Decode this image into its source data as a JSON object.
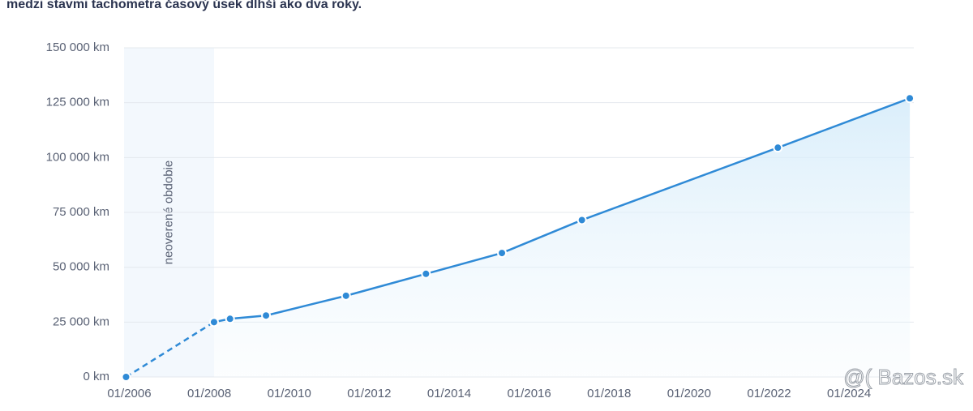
{
  "header": "medzi stavmi tachometra časový úsek dlhší ako dva roky.",
  "chart_data": {
    "type": "line",
    "annotation": "neoverené obdobie",
    "x": [
      2006.0,
      2008.2,
      2008.6,
      2009.5,
      2011.5,
      2013.5,
      2015.4,
      2017.4,
      2022.3,
      2025.6
    ],
    "values": [
      0,
      25000,
      26500,
      28000,
      37000,
      47000,
      56500,
      71500,
      104500,
      127000
    ],
    "color": "#2f8ad6",
    "xlim": [
      2005.95,
      2025.7
    ],
    "xticks": [
      {
        "value": 2006,
        "label": "01/2006"
      },
      {
        "value": 2008,
        "label": "01/2008"
      },
      {
        "value": 2010,
        "label": "01/2010"
      },
      {
        "value": 2012,
        "label": "01/2012"
      },
      {
        "value": 2014,
        "label": "01/2014"
      },
      {
        "value": 2016,
        "label": "01/2016"
      },
      {
        "value": 2018,
        "label": "01/2018"
      },
      {
        "value": 2020,
        "label": "01/2020"
      },
      {
        "value": 2022,
        "label": "01/2022"
      },
      {
        "value": 2024,
        "label": "01/2024"
      }
    ],
    "ylim": [
      0,
      150000
    ],
    "yticks": [
      {
        "value": 0,
        "label": "0 km"
      },
      {
        "value": 25000,
        "label": "25 000 km"
      },
      {
        "value": 50000,
        "label": "50 000 km"
      },
      {
        "value": 75000,
        "label": "75 000 km"
      },
      {
        "value": 100000,
        "label": "100 000 km"
      },
      {
        "value": 125000,
        "label": "125 000 km"
      },
      {
        "value": 150000,
        "label": "150 000 km"
      }
    ],
    "grid": true
  },
  "watermark": "@( Bazos.sk"
}
